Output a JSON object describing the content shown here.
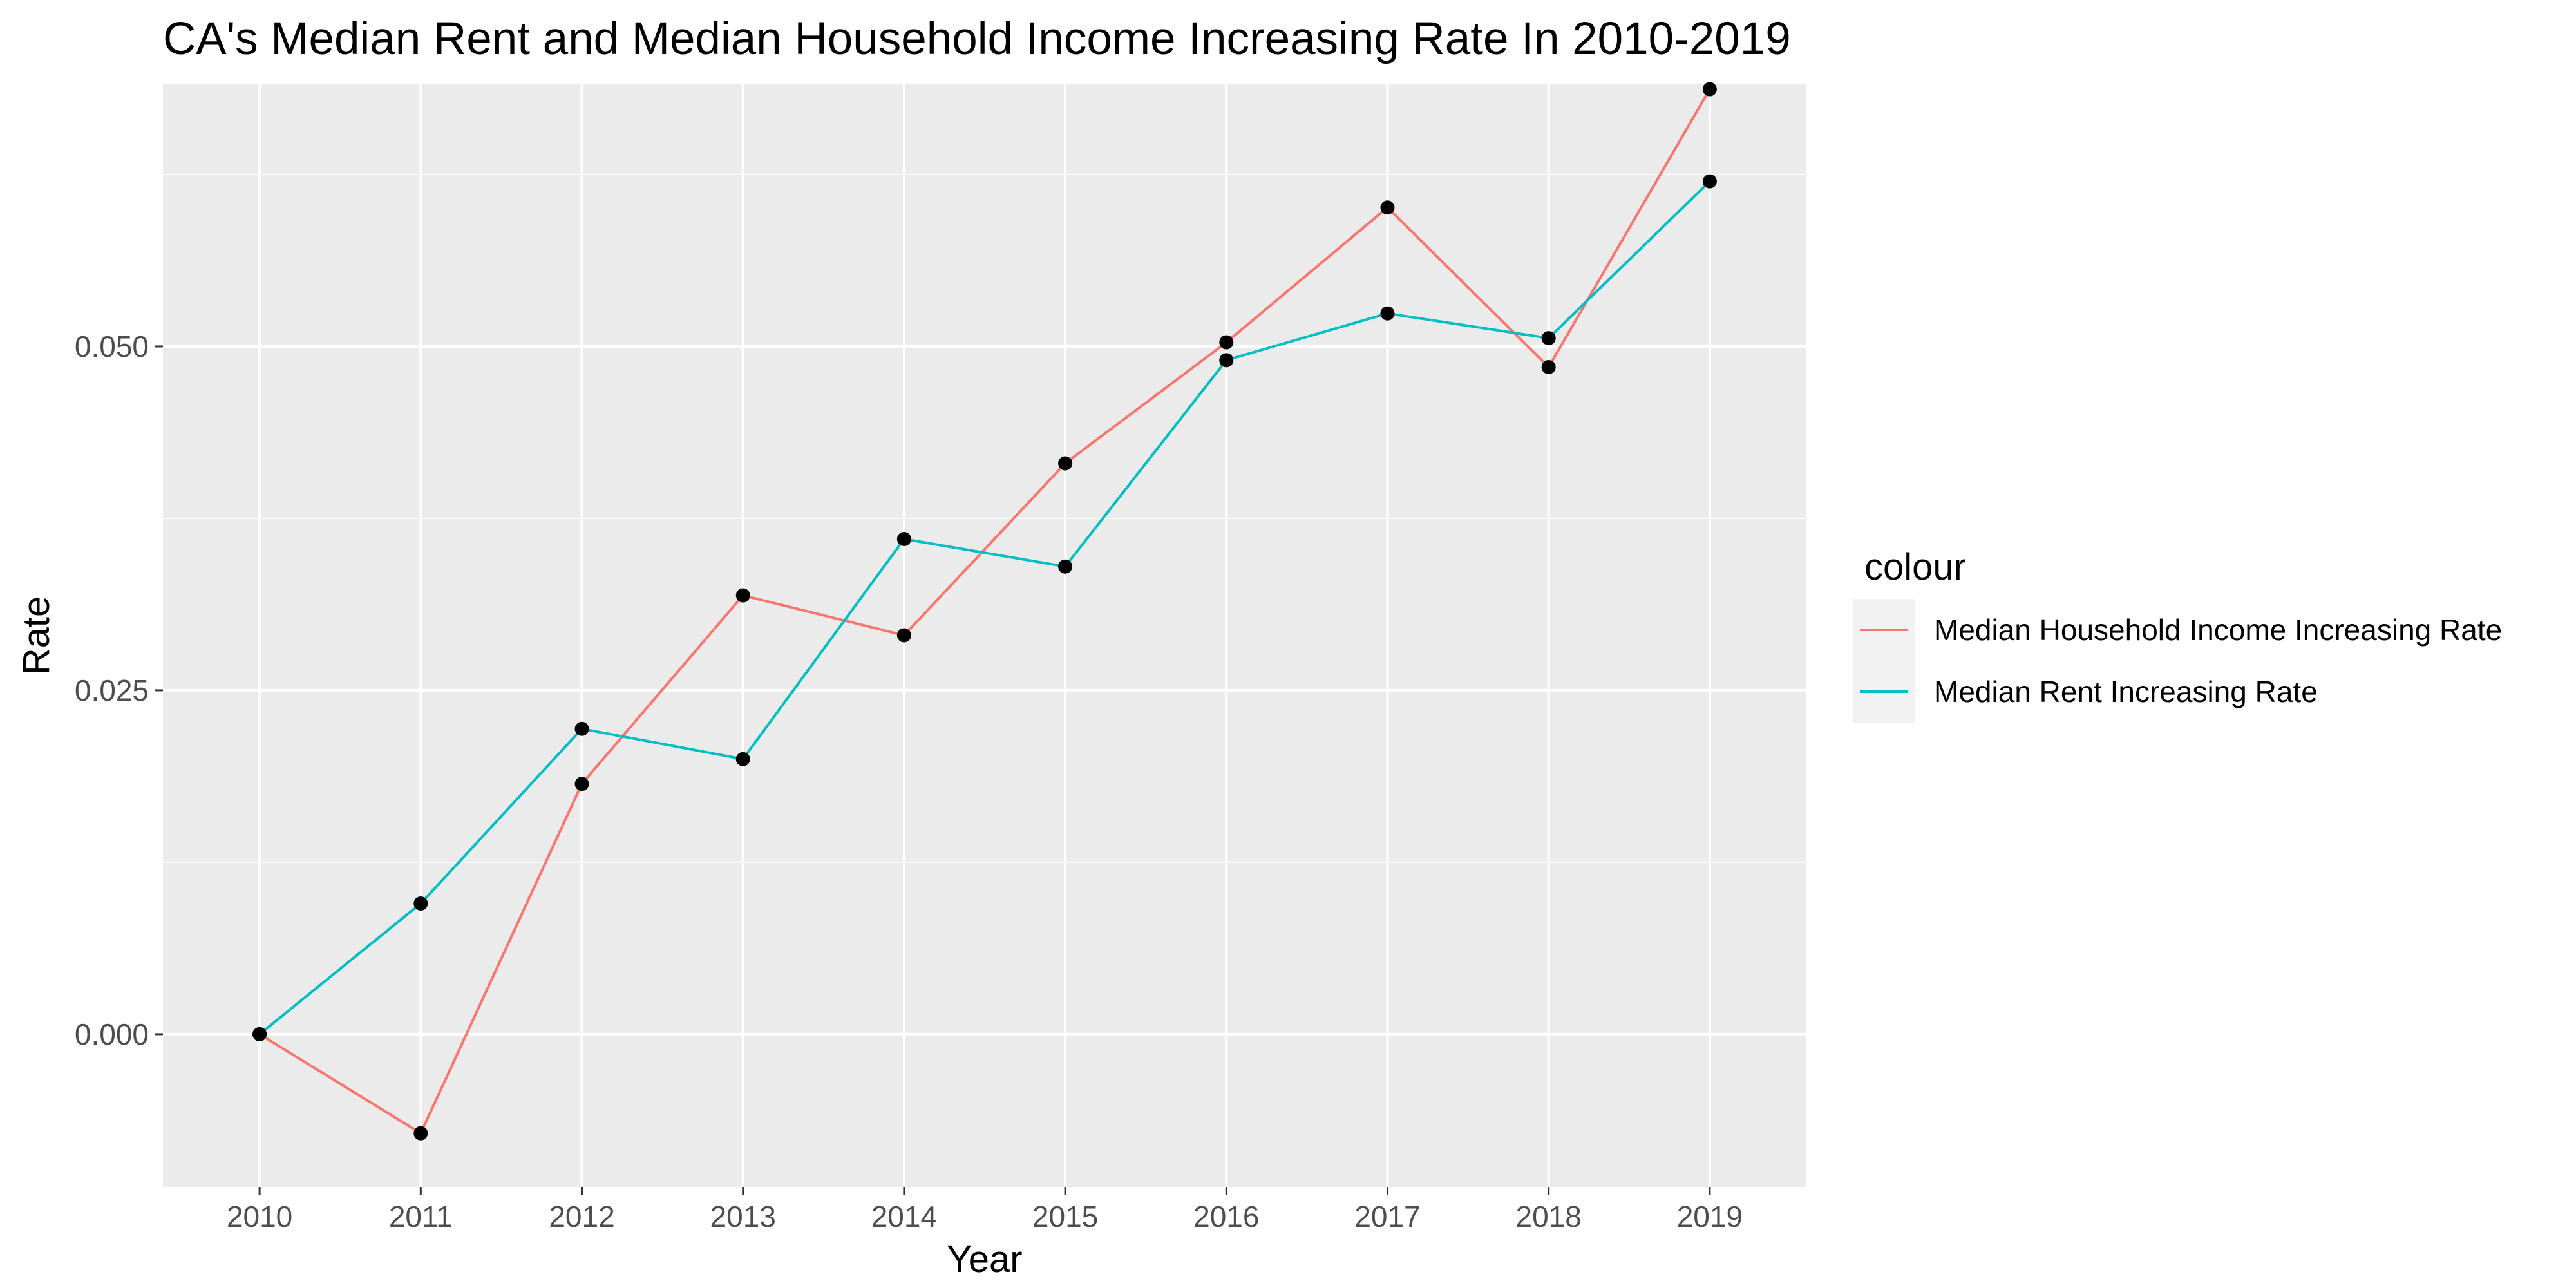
{
  "chart_data": {
    "type": "line",
    "title": "CA's Median Rent and Median Household Income Increasing Rate In 2010-2019",
    "xlabel": "Year",
    "ylabel": "Rate",
    "x": [
      2010,
      2011,
      2012,
      2013,
      2014,
      2015,
      2016,
      2017,
      2018,
      2019
    ],
    "x_tick_labels": [
      "2010",
      "2011",
      "2012",
      "2013",
      "2014",
      "2015",
      "2016",
      "2017",
      "2018",
      "2019"
    ],
    "xlim": [
      2009.4,
      2019.6
    ],
    "ylim": [
      -0.0111,
      0.0691
    ],
    "y_ticks": [
      0,
      0.025,
      0.05
    ],
    "y_tick_labels": [
      "0.000",
      "0.025",
      "0.050"
    ],
    "grid": true,
    "legend_title": "colour",
    "legend_placement": "right",
    "point_color": "#000000",
    "background_color": "#EBEBEB",
    "series": [
      {
        "name": "Median Household Income Increasing Rate",
        "color": "#F8766D",
        "values": [
          0.0,
          -0.0072,
          0.0182,
          0.0319,
          0.029,
          0.0415,
          0.0503,
          0.0601,
          0.0485,
          0.0687
        ]
      },
      {
        "name": "Median Rent Increasing Rate",
        "color": "#00BFC4",
        "values": [
          0.0,
          0.0095,
          0.0222,
          0.02,
          0.036,
          0.034,
          0.049,
          0.0524,
          0.0506,
          0.062
        ]
      }
    ]
  }
}
